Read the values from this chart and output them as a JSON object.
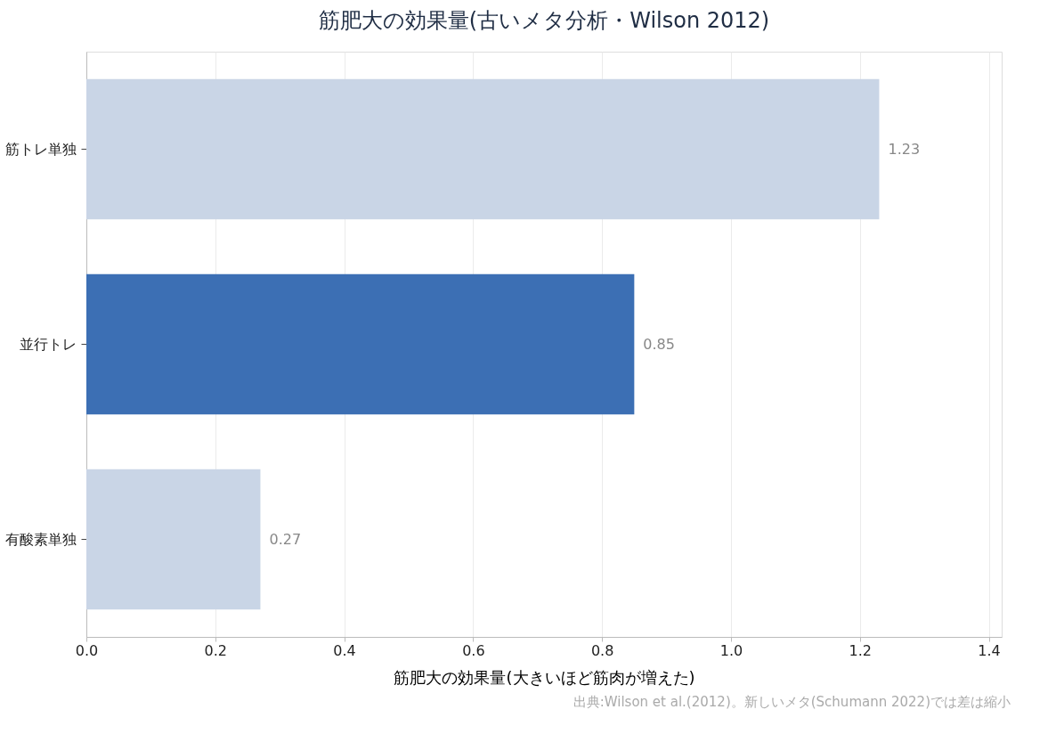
{
  "chart_data": {
    "type": "bar",
    "orientation": "horizontal",
    "title": "筋肥大の効果量(古いメタ分析・Wilson 2012)",
    "xlabel": "筋肥大の効果量(大きいほど筋肉が増えた)",
    "categories": [
      "筋トレ単独",
      "並行トレ",
      "有酸素単独"
    ],
    "values": [
      1.23,
      0.85,
      0.27
    ],
    "colors": [
      "#c9d5e6",
      "#3c6fb4",
      "#c9d5e6"
    ],
    "xlim": [
      0,
      1.42
    ],
    "xticks": [
      {
        "value": 0,
        "label": "0.0"
      },
      0.2,
      0.4,
      0.6,
      0.8,
      {
        "value": 1,
        "label": "1.0"
      },
      1.2,
      1.4
    ],
    "grid": "x",
    "data_labels": true,
    "annotations": [
      "出典:Wilson et al.(2012)。新しいメタ(Schumann 2022)では差は縮小"
    ]
  }
}
